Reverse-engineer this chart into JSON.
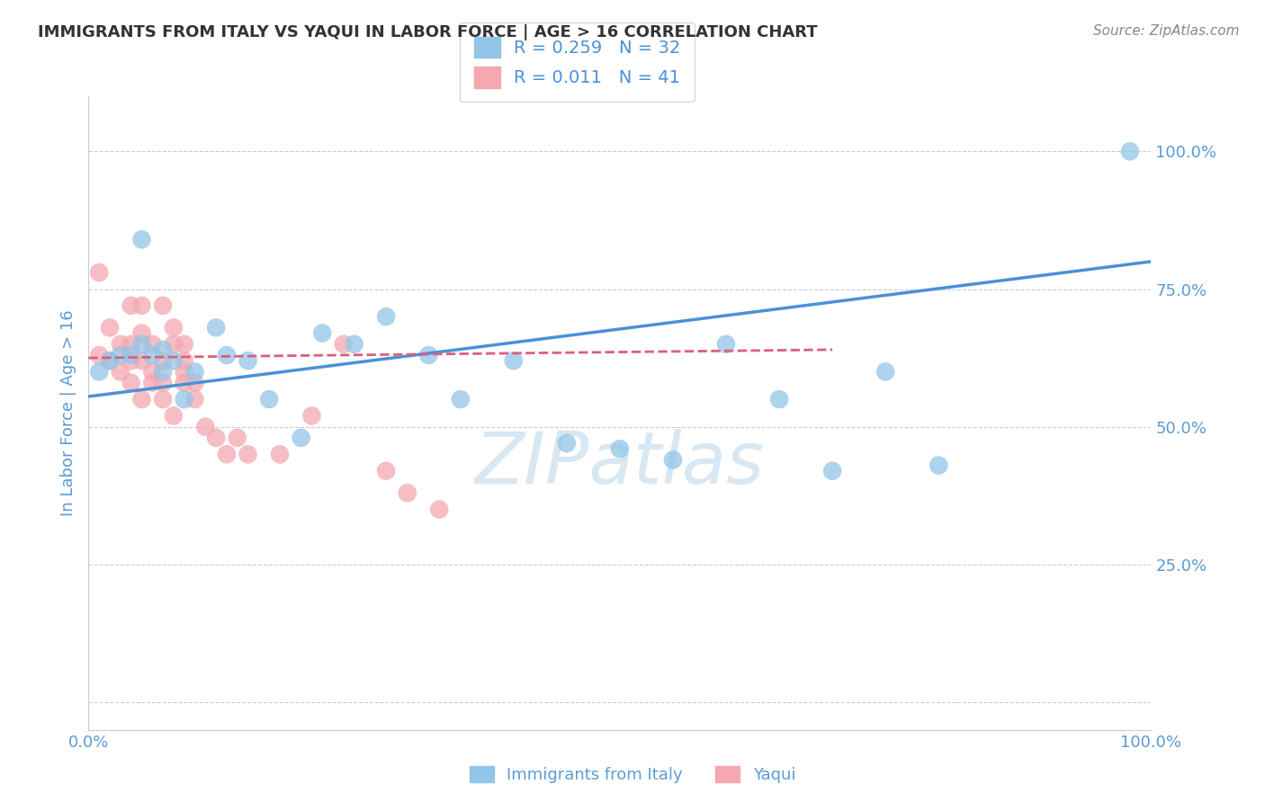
{
  "title": "IMMIGRANTS FROM ITALY VS YAQUI IN LABOR FORCE | AGE > 16 CORRELATION CHART",
  "source": "Source: ZipAtlas.com",
  "ylabel": "In Labor Force | Age > 16",
  "xlabel": "",
  "blue_label": "Immigrants from Italy",
  "pink_label": "Yaqui",
  "blue_R": 0.259,
  "blue_N": 32,
  "pink_R": 0.011,
  "pink_N": 41,
  "blue_color": "#93c5e8",
  "pink_color": "#f4a8b0",
  "blue_line_color": "#4a90d9",
  "pink_line_color": "#d9607a",
  "background": "#ffffff",
  "grid_color": "#cccccc",
  "watermark": "ZIPatlas",
  "watermark_color": "#b8d4e8",
  "title_color": "#333333",
  "axis_label_color": "#5b9bd5",
  "xlim": [
    0,
    1
  ],
  "ylim": [
    -0.05,
    1.1
  ],
  "blue_x": [
    0.01,
    0.02,
    0.03,
    0.04,
    0.05,
    0.05,
    0.06,
    0.07,
    0.07,
    0.08,
    0.09,
    0.1,
    0.12,
    0.13,
    0.15,
    0.17,
    0.2,
    0.22,
    0.25,
    0.28,
    0.32,
    0.35,
    0.4,
    0.45,
    0.5,
    0.55,
    0.6,
    0.65,
    0.7,
    0.75,
    0.8,
    0.98
  ],
  "blue_y": [
    0.6,
    0.62,
    0.63,
    0.63,
    0.65,
    0.84,
    0.63,
    0.6,
    0.64,
    0.62,
    0.55,
    0.6,
    0.68,
    0.63,
    0.62,
    0.55,
    0.48,
    0.67,
    0.65,
    0.7,
    0.63,
    0.55,
    0.62,
    0.47,
    0.46,
    0.44,
    0.65,
    0.55,
    0.42,
    0.6,
    0.43,
    1.0
  ],
  "pink_x": [
    0.01,
    0.01,
    0.02,
    0.02,
    0.03,
    0.03,
    0.04,
    0.04,
    0.04,
    0.04,
    0.05,
    0.05,
    0.05,
    0.05,
    0.06,
    0.06,
    0.06,
    0.07,
    0.07,
    0.07,
    0.07,
    0.08,
    0.08,
    0.08,
    0.09,
    0.09,
    0.09,
    0.09,
    0.1,
    0.1,
    0.11,
    0.12,
    0.13,
    0.14,
    0.15,
    0.18,
    0.21,
    0.24,
    0.28,
    0.3,
    0.33
  ],
  "pink_y": [
    0.63,
    0.78,
    0.62,
    0.68,
    0.6,
    0.65,
    0.58,
    0.62,
    0.65,
    0.72,
    0.55,
    0.62,
    0.67,
    0.72,
    0.58,
    0.6,
    0.65,
    0.58,
    0.62,
    0.55,
    0.72,
    0.52,
    0.65,
    0.68,
    0.6,
    0.58,
    0.62,
    0.65,
    0.55,
    0.58,
    0.5,
    0.48,
    0.45,
    0.48,
    0.45,
    0.45,
    0.52,
    0.65,
    0.42,
    0.38,
    0.35
  ],
  "yticks": [
    0.0,
    0.25,
    0.5,
    0.75,
    1.0
  ],
  "ytick_labels": [
    "",
    "25.0%",
    "50.0%",
    "75.0%",
    "100.0%"
  ],
  "xticks": [
    0.0,
    0.25,
    0.5,
    0.75,
    1.0
  ],
  "xtick_labels": [
    "0.0%",
    "",
    "",
    "",
    "100.0%"
  ],
  "blue_trend_x0": 0.0,
  "blue_trend_y0": 0.555,
  "blue_trend_x1": 1.0,
  "blue_trend_y1": 0.8,
  "pink_trend_x0": 0.0,
  "pink_trend_y0": 0.625,
  "pink_trend_x1": 0.7,
  "pink_trend_y1": 0.64
}
